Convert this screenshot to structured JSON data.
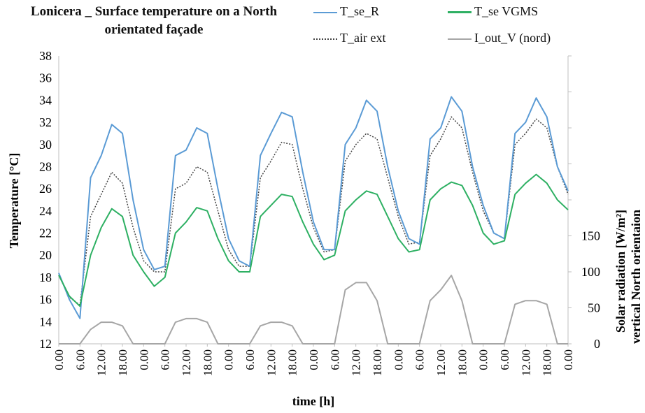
{
  "chart_data": {
    "type": "line",
    "title": "Lonicera _ Surface temperature on a North orientated façade",
    "xlabel": "time [h]",
    "ylabel": "Temperature [°C]",
    "y2label_line1": "Solar radiation  [W/m²]",
    "y2label_line2": "vertical North orientaion",
    "ylim": [
      12,
      38
    ],
    "y_ticks": [
      "12",
      "14",
      "16",
      "18",
      "20",
      "22",
      "24",
      "26",
      "28",
      "30",
      "32",
      "34",
      "36",
      "38"
    ],
    "y2lim": [
      0,
      400
    ],
    "y2_ticks": [
      "0",
      "50",
      "100",
      "150"
    ],
    "x_tick_labels": [
      "0.00",
      "6.00",
      "12.00",
      "18.00",
      "0.00",
      "6.00",
      "12.00",
      "18.00",
      "0.00",
      "6.00",
      "12.00",
      "18.00",
      "0.00",
      "6.00",
      "12.00",
      "18.00",
      "0.00",
      "6.00",
      "12.00",
      "18.00",
      "0.00",
      "6.00",
      "12.00",
      "18.00",
      "0.00"
    ],
    "x_hours": [
      0,
      3,
      6,
      9,
      12,
      15,
      18,
      21,
      24,
      27,
      30,
      33,
      36,
      39,
      42,
      45,
      48,
      51,
      54,
      57,
      60,
      63,
      66,
      69,
      72,
      75,
      78,
      81,
      84,
      87,
      90,
      93,
      96,
      99,
      102,
      105,
      108,
      111,
      114,
      117,
      120,
      123,
      126,
      129,
      132,
      135,
      138,
      141,
      144
    ],
    "series": [
      {
        "name": "T_se_R",
        "axis": "left",
        "color": "#5b9bd5",
        "style": "solid",
        "values": [
          18.4,
          16.0,
          14.3,
          27.0,
          29.0,
          31.8,
          31.0,
          25.0,
          20.5,
          18.7,
          19.0,
          29.0,
          29.5,
          31.5,
          31.0,
          26.0,
          21.5,
          19.5,
          19.0,
          29.0,
          31.0,
          32.9,
          32.5,
          27.5,
          23.0,
          20.5,
          20.5,
          30.0,
          31.5,
          34.0,
          33.0,
          28.0,
          24.0,
          21.5,
          21.0,
          30.5,
          31.5,
          34.3,
          33.0,
          28.0,
          24.5,
          22.0,
          21.5,
          31.0,
          32.0,
          34.2,
          32.5,
          28.0,
          25.8
        ]
      },
      {
        "name": "T_se VGMS",
        "axis": "left",
        "color": "#2eb063",
        "style": "solid",
        "values": [
          18.2,
          16.3,
          15.4,
          20.0,
          22.5,
          24.2,
          23.5,
          20.0,
          18.5,
          17.2,
          18.0,
          22.0,
          23.0,
          24.3,
          24.0,
          21.5,
          19.5,
          18.5,
          18.5,
          23.5,
          24.5,
          25.5,
          25.3,
          23.0,
          21.0,
          19.6,
          20.0,
          24.0,
          25.0,
          25.8,
          25.5,
          23.5,
          21.5,
          20.3,
          20.5,
          25.0,
          26.0,
          26.6,
          26.3,
          24.5,
          22.0,
          21.0,
          21.3,
          25.5,
          26.5,
          27.3,
          26.5,
          25.0,
          24.1
        ]
      },
      {
        "name": "T_air ext",
        "axis": "left",
        "color": "#444444",
        "style": "dotted",
        "values": [
          18.2,
          16.2,
          15.5,
          23.5,
          25.5,
          27.5,
          26.5,
          22.5,
          19.5,
          18.5,
          18.5,
          26.0,
          26.5,
          28.0,
          27.5,
          24.0,
          20.5,
          19.0,
          19.0,
          27.0,
          28.5,
          30.2,
          30.0,
          26.0,
          22.5,
          20.3,
          20.5,
          28.5,
          30.0,
          31.0,
          30.5,
          27.0,
          23.5,
          21.0,
          21.2,
          29.0,
          30.5,
          32.5,
          31.5,
          27.5,
          24.0,
          22.0,
          21.5,
          30.0,
          31.0,
          32.3,
          31.5,
          28.0,
          25.5
        ]
      },
      {
        "name": "I_out_V (nord)",
        "axis": "right",
        "color": "#a6a6a6",
        "style": "solid",
        "values": [
          0,
          0,
          0,
          20,
          30,
          30,
          25,
          0,
          0,
          0,
          0,
          30,
          35,
          35,
          30,
          0,
          0,
          0,
          0,
          25,
          30,
          30,
          25,
          0,
          0,
          0,
          0,
          75,
          85,
          85,
          60,
          0,
          0,
          0,
          0,
          60,
          75,
          95,
          60,
          0,
          0,
          0,
          0,
          55,
          60,
          60,
          55,
          0,
          0
        ]
      }
    ],
    "legend_position": "top-right",
    "grid": false
  }
}
